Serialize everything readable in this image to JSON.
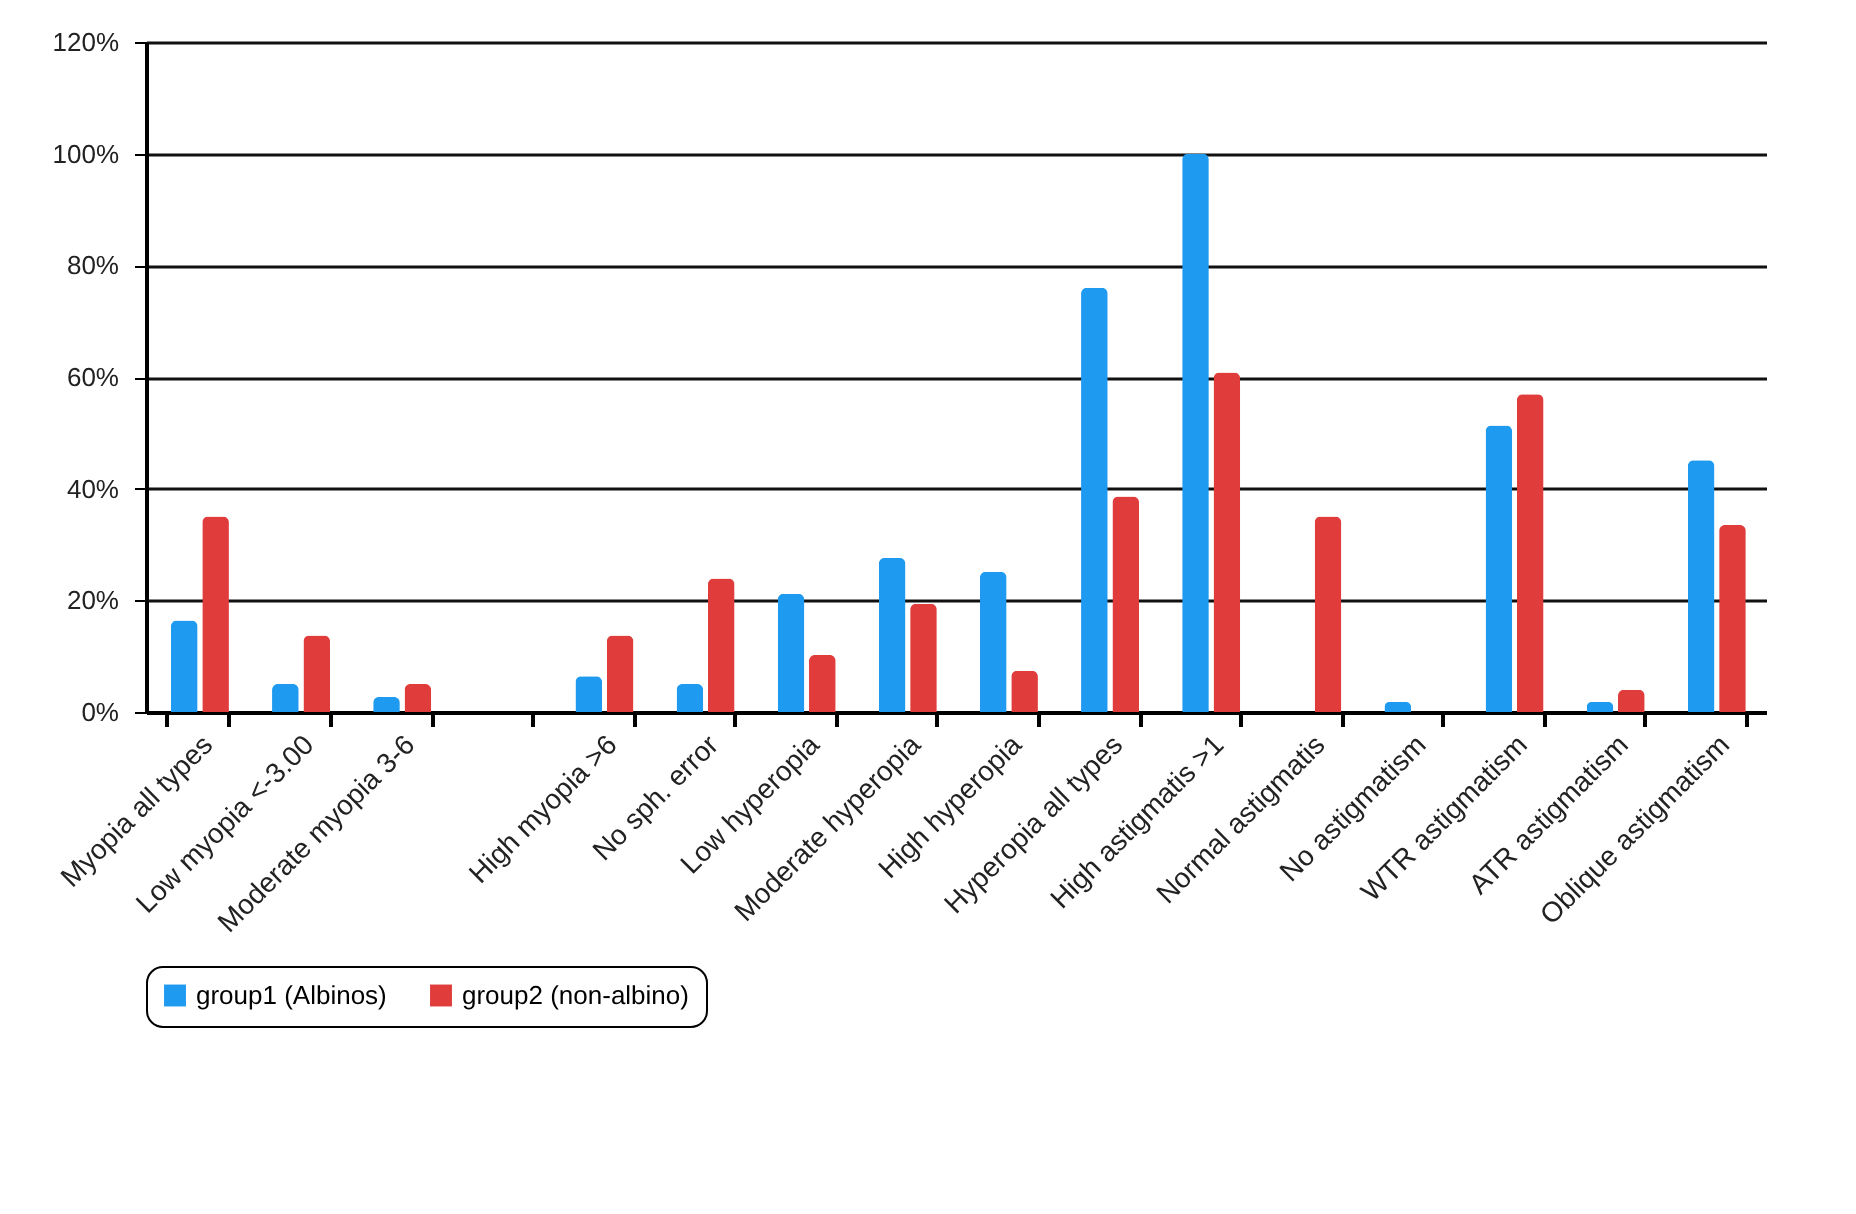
{
  "chart_data": {
    "type": "bar",
    "categories": [
      "Myopia all types",
      "Low myopia <-3.00",
      "Moderate myopia 3-6",
      null,
      "High myopia >6",
      "No sph. error",
      "Low hyperopia",
      "Moderate hyperopia",
      "High hyperopia",
      "Hyperopia all types",
      "High astigmatis >1",
      "Normal astigmatis",
      "No astigmatism",
      "WTR astigmatism",
      "ATR astigmatism",
      "Oblique astigmatism"
    ],
    "series": [
      {
        "name": "group1 (Albinos)",
        "color": "#1e9af0",
        "values": [
          16.4,
          5,
          2.7,
          null,
          6.4,
          5,
          21.2,
          27.6,
          25.1,
          76,
          100,
          null,
          1.8,
          51.3,
          1.8,
          45.1
        ]
      },
      {
        "name": "group2 (non-albino)",
        "color": "#e03c3c",
        "values": [
          35,
          13.7,
          5,
          null,
          13.7,
          23.9,
          10.2,
          19.4,
          7.4,
          38.6,
          60.8,
          35,
          null,
          56.9,
          4,
          33.5
        ]
      }
    ],
    "ylim": [
      0,
      120
    ],
    "yticks": [
      {
        "value": 0,
        "label": "0%"
      },
      {
        "value": 20,
        "label": "20%"
      },
      {
        "value": 40,
        "label": "40%"
      },
      {
        "value": 60,
        "label": "60%"
      },
      {
        "value": 80,
        "label": "80%"
      },
      {
        "value": 100,
        "label": "100%"
      },
      {
        "value": 120,
        "label": "120%"
      }
    ],
    "grid": "y",
    "legend": "bottom"
  }
}
